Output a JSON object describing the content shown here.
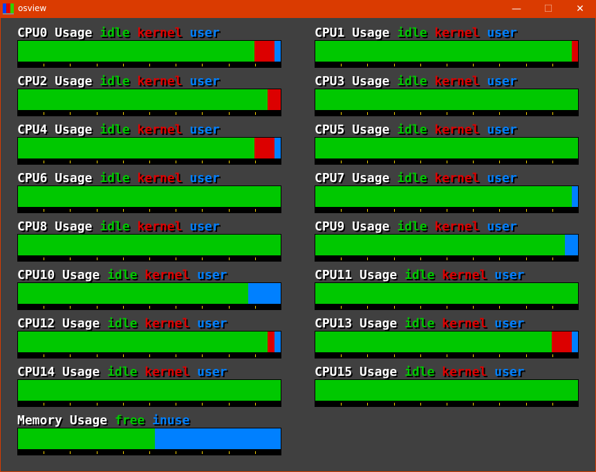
{
  "window": {
    "title": "osview",
    "minimize": "—",
    "maximize": "☐",
    "close": "✕"
  },
  "colors": {
    "idle": "#00c800",
    "kernel": "#dc0000",
    "user": "#0080ff",
    "free": "#00c800",
    "inuse": "#0080ff",
    "tick": "#ffd700",
    "background": "#404040",
    "titlebar": "#da3b01"
  },
  "meters": [
    {
      "name": "CPU0",
      "title": "Usage",
      "legend": [
        "idle",
        "kernel",
        "user"
      ],
      "values": [
        90,
        7.5,
        2.5
      ]
    },
    {
      "name": "CPU1",
      "title": "Usage",
      "legend": [
        "idle",
        "kernel",
        "user"
      ],
      "values": [
        97.5,
        2.5,
        0
      ]
    },
    {
      "name": "CPU2",
      "title": "Usage",
      "legend": [
        "idle",
        "kernel",
        "user"
      ],
      "values": [
        95,
        5,
        0
      ]
    },
    {
      "name": "CPU3",
      "title": "Usage",
      "legend": [
        "idle",
        "kernel",
        "user"
      ],
      "values": [
        100,
        0,
        0
      ]
    },
    {
      "name": "CPU4",
      "title": "Usage",
      "legend": [
        "idle",
        "kernel",
        "user"
      ],
      "values": [
        90,
        7.5,
        2.5
      ]
    },
    {
      "name": "CPU5",
      "title": "Usage",
      "legend": [
        "idle",
        "kernel",
        "user"
      ],
      "values": [
        100,
        0,
        0
      ]
    },
    {
      "name": "CPU6",
      "title": "Usage",
      "legend": [
        "idle",
        "kernel",
        "user"
      ],
      "values": [
        100,
        0,
        0
      ]
    },
    {
      "name": "CPU7",
      "title": "Usage",
      "legend": [
        "idle",
        "kernel",
        "user"
      ],
      "values": [
        97.5,
        0,
        2.5
      ]
    },
    {
      "name": "CPU8",
      "title": "Usage",
      "legend": [
        "idle",
        "kernel",
        "user"
      ],
      "values": [
        100,
        0,
        0
      ]
    },
    {
      "name": "CPU9",
      "title": "Usage",
      "legend": [
        "idle",
        "kernel",
        "user"
      ],
      "values": [
        95,
        0,
        5
      ]
    },
    {
      "name": "CPU10",
      "title": "Usage",
      "legend": [
        "idle",
        "kernel",
        "user"
      ],
      "values": [
        87.5,
        0,
        12.5
      ]
    },
    {
      "name": "CPU11",
      "title": "Usage",
      "legend": [
        "idle",
        "kernel",
        "user"
      ],
      "values": [
        100,
        0,
        0
      ]
    },
    {
      "name": "CPU12",
      "title": "Usage",
      "legend": [
        "idle",
        "kernel",
        "user"
      ],
      "values": [
        95,
        2.5,
        2.5
      ]
    },
    {
      "name": "CPU13",
      "title": "Usage",
      "legend": [
        "idle",
        "kernel",
        "user"
      ],
      "values": [
        90,
        7.5,
        2.5
      ]
    },
    {
      "name": "CPU14",
      "title": "Usage",
      "legend": [
        "idle",
        "kernel",
        "user"
      ],
      "values": [
        100,
        0,
        0
      ]
    },
    {
      "name": "CPU15",
      "title": "Usage",
      "legend": [
        "idle",
        "kernel",
        "user"
      ],
      "values": [
        100,
        0,
        0
      ]
    },
    {
      "name": "Memory",
      "title": "Usage",
      "legend": [
        "free",
        "inuse"
      ],
      "values": [
        52,
        48
      ]
    }
  ]
}
